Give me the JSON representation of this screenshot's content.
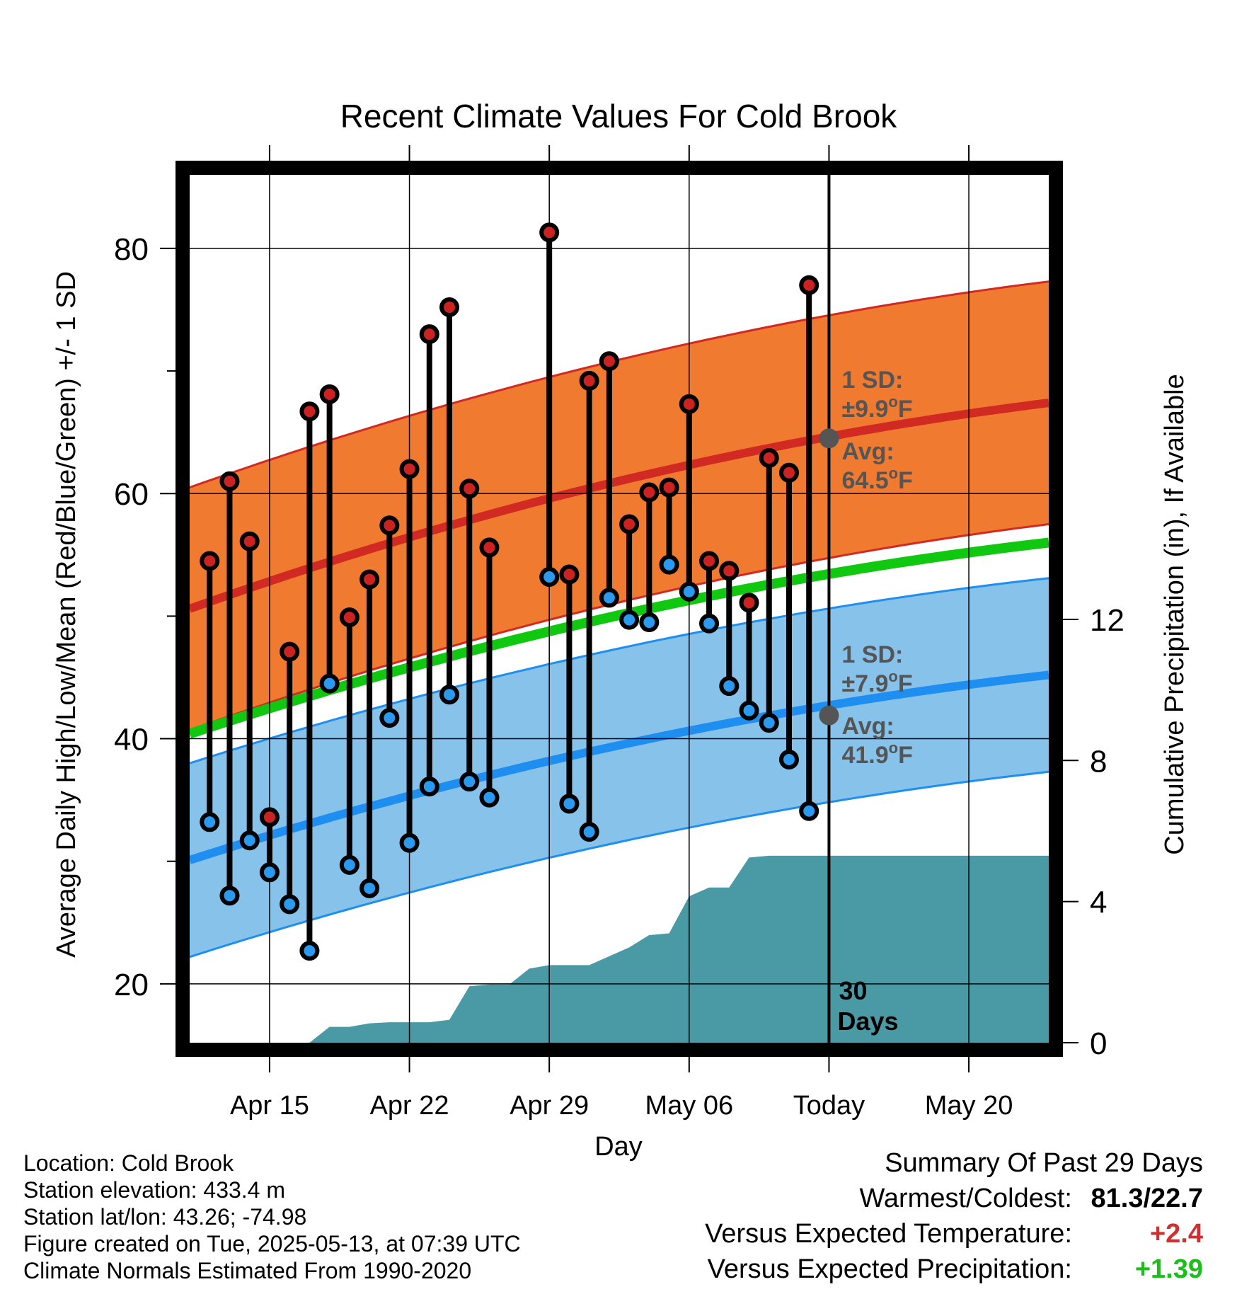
{
  "chart_data": {
    "type": "line",
    "title": "Recent Climate Values For Cold Brook",
    "xlabel": "Day",
    "ylabel": "Average Daily High/Low/Mean (Red/Blue/Green) +/- 1 SD",
    "y2label": "Cumulative Precipitation (in), If Available",
    "x_range": [
      "2025-04-11",
      "2025-05-24"
    ],
    "ylim": [
      15.2,
      86
    ],
    "y2lim": [
      0,
      24.6
    ],
    "y_ticks": [
      20,
      40,
      60,
      80
    ],
    "y_minor_ticks": [
      30,
      50,
      70
    ],
    "y2_ticks": [
      0,
      4,
      8,
      12
    ],
    "x_ticks": [
      {
        "date": "2025-04-15",
        "label": "Apr 15"
      },
      {
        "date": "2025-04-22",
        "label": "Apr 22"
      },
      {
        "date": "2025-04-29",
        "label": "Apr 29"
      },
      {
        "date": "2025-05-06",
        "label": "May 06"
      },
      {
        "date": "2025-05-13",
        "label": "Today"
      },
      {
        "date": "2025-05-20",
        "label": "May 20"
      }
    ],
    "grid": true,
    "today": "2025-05-13",
    "today_label": [
      "30",
      "Days"
    ],
    "normals": {
      "high_avg": {
        "start": 50.6,
        "end": 67.4
      },
      "high_sd": 9.9,
      "mean_avg": {
        "start": 40.4,
        "end": 56.0
      },
      "low_avg": {
        "start": 30.1,
        "end": 45.2
      },
      "low_sd": 7.9
    },
    "observations": [
      {
        "date": "2025-04-12",
        "high": 54.5,
        "low": 33.2
      },
      {
        "date": "2025-04-13",
        "high": 61.0,
        "low": 27.2
      },
      {
        "date": "2025-04-14",
        "high": 56.1,
        "low": 31.7
      },
      {
        "date": "2025-04-15",
        "high": 33.6,
        "low": 29.1
      },
      {
        "date": "2025-04-16",
        "high": 47.1,
        "low": 26.5
      },
      {
        "date": "2025-04-17",
        "high": 66.7,
        "low": 22.7
      },
      {
        "date": "2025-04-18",
        "high": 68.1,
        "low": 44.5
      },
      {
        "date": "2025-04-19",
        "high": 49.9,
        "low": 29.7
      },
      {
        "date": "2025-04-20",
        "high": 53.0,
        "low": 27.8
      },
      {
        "date": "2025-04-21",
        "high": 57.4,
        "low": 41.7
      },
      {
        "date": "2025-04-22",
        "high": 62.0,
        "low": 31.5
      },
      {
        "date": "2025-04-23",
        "high": 73.0,
        "low": 36.1
      },
      {
        "date": "2025-04-24",
        "high": 75.2,
        "low": 43.6
      },
      {
        "date": "2025-04-25",
        "high": 60.4,
        "low": 36.5
      },
      {
        "date": "2025-04-26",
        "high": 55.6,
        "low": 35.2
      },
      {
        "date": "2025-04-29",
        "high": 81.3,
        "low": 53.2
      },
      {
        "date": "2025-04-30",
        "high": 53.4,
        "low": 34.7
      },
      {
        "date": "2025-05-01",
        "high": 69.2,
        "low": 32.4
      },
      {
        "date": "2025-05-02",
        "high": 70.8,
        "low": 51.5
      },
      {
        "date": "2025-05-03",
        "high": 57.5,
        "low": 49.7
      },
      {
        "date": "2025-05-04",
        "high": 60.1,
        "low": 49.5
      },
      {
        "date": "2025-05-05",
        "high": 60.5,
        "low": 54.2
      },
      {
        "date": "2025-05-06",
        "high": 67.3,
        "low": 52.0
      },
      {
        "date": "2025-05-07",
        "high": 54.5,
        "low": 49.4
      },
      {
        "date": "2025-05-08",
        "high": 53.7,
        "low": 44.3
      },
      {
        "date": "2025-05-09",
        "high": 51.1,
        "low": 42.3
      },
      {
        "date": "2025-05-10",
        "high": 62.9,
        "low": 41.3
      },
      {
        "date": "2025-05-11",
        "high": 61.7,
        "low": 38.3
      },
      {
        "date": "2025-05-12",
        "high": 77.0,
        "low": 34.1
      }
    ],
    "precip_cumulative": [
      {
        "date": "2025-04-11",
        "in": 0
      },
      {
        "date": "2025-04-17",
        "in": 0
      },
      {
        "date": "2025-04-18",
        "in": 0.45
      },
      {
        "date": "2025-04-19",
        "in": 0.45
      },
      {
        "date": "2025-04-20",
        "in": 0.55
      },
      {
        "date": "2025-04-21",
        "in": 0.58
      },
      {
        "date": "2025-04-22",
        "in": 0.58
      },
      {
        "date": "2025-04-23",
        "in": 0.58
      },
      {
        "date": "2025-04-24",
        "in": 0.65
      },
      {
        "date": "2025-04-25",
        "in": 1.6
      },
      {
        "date": "2025-04-26",
        "in": 1.65
      },
      {
        "date": "2025-04-27",
        "in": 1.65
      },
      {
        "date": "2025-04-28",
        "in": 2.1
      },
      {
        "date": "2025-04-29",
        "in": 2.2
      },
      {
        "date": "2025-04-30",
        "in": 2.2
      },
      {
        "date": "2025-05-01",
        "in": 2.2
      },
      {
        "date": "2025-05-02",
        "in": 2.45
      },
      {
        "date": "2025-05-03",
        "in": 2.7
      },
      {
        "date": "2025-05-04",
        "in": 3.05
      },
      {
        "date": "2025-05-05",
        "in": 3.1
      },
      {
        "date": "2025-05-06",
        "in": 4.15
      },
      {
        "date": "2025-05-07",
        "in": 4.4
      },
      {
        "date": "2025-05-08",
        "in": 4.4
      },
      {
        "date": "2025-05-09",
        "in": 5.25
      },
      {
        "date": "2025-05-10",
        "in": 5.3
      },
      {
        "date": "2025-05-24",
        "in": 5.3
      }
    ],
    "annotations": {
      "high": {
        "sd_label": "1 SD:",
        "sd_value": "±9.9",
        "avg_label": "Avg:",
        "avg_value": "64.5",
        "unit": "F",
        "degree": "o",
        "avg_y": 64.5
      },
      "low": {
        "sd_label": "1 SD:",
        "sd_value": "±7.9",
        "avg_label": "Avg:",
        "avg_value": "41.9",
        "unit": "F",
        "degree": "o",
        "avg_y": 41.9
      }
    },
    "colors": {
      "high_band": "#f07a30",
      "high_line": "#d02a22",
      "low_band": "#87c2ea",
      "low_line": "#1e8ff0",
      "mean_line": "#10c810",
      "precip": "#4a9aa5",
      "high_dot": "#cc2222",
      "low_dot": "#2a9af0",
      "annotation": "#555555",
      "avg_marker": "#555555"
    }
  },
  "footer": {
    "location": "Location: Cold Brook",
    "elevation": "Station elevation: 433.4 m",
    "latlon": "Station lat/lon: 43.26; -74.98",
    "created": "Figure created on Tue, 2025-05-13, at 07:39 UTC",
    "normals": "Climate Normals Estimated From 1990-2020"
  },
  "summary": {
    "title": "Summary Of Past 29 Days",
    "warmest_label": "Warmest/Coldest:",
    "warmest_value": "81.3/22.7",
    "temp_label": "Versus Expected Temperature:",
    "temp_value": "+2.4",
    "temp_color": "#d03030",
    "precip_label": "Versus Expected Precipitation:",
    "precip_value": "+1.39",
    "precip_color": "#18c018"
  }
}
